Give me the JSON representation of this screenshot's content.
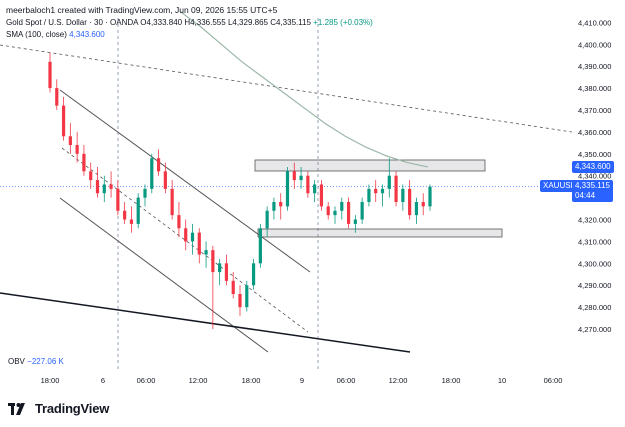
{
  "header": {
    "created_by": "meerbaloch1 created with TradingView.com, Jun 09, 2026 15:55 UTC+5"
  },
  "legend": {
    "symbol_line": "Gold Spot / U.S. Dollar · 30 · OANDA",
    "open": "O4,333.840",
    "high": "H4,336.555",
    "low": "L4,329.865",
    "close": "C4,335.115",
    "change": "+1.285 (+0.03%)",
    "sma_label": "SMA (100, close)",
    "sma_value": "4,343.600"
  },
  "obv": {
    "label": "OBV",
    "value": "−227.06 K"
  },
  "price_tags": {
    "sma": {
      "value": "4,343.600",
      "color": "#2962ff"
    },
    "symbol": {
      "label": "XAUUSD",
      "value": "4,335.115",
      "countdown": "04:44",
      "color": "#2962ff"
    }
  },
  "axis": {
    "y_ticks": [
      "4,410.000",
      "4,400.000",
      "4,390.000",
      "4,380.000",
      "4,370.000",
      "4,360.000",
      "4,350.000",
      "4,340.000",
      "4,330.000",
      "4,320.000",
      "4,310.000",
      "4,300.000",
      "4,290.000",
      "4,280.000",
      "4,270.000"
    ],
    "x_ticks": [
      "18:00",
      "6",
      "06:00",
      "12:00",
      "18:00",
      "9",
      "06:00",
      "12:00",
      "18:00",
      "10",
      "06:00"
    ]
  },
  "colors": {
    "up": "#089981",
    "down": "#f23645",
    "sma": "#9bb7a8",
    "text": "#131722"
  },
  "brand": {
    "name": "TradingView",
    "logo": "tradingview-logo-icon"
  },
  "chart_data": {
    "type": "candlestick",
    "ylim": [
      4265,
      4412
    ],
    "y_ticks": [
      4410,
      4400,
      4390,
      4380,
      4370,
      4360,
      4350,
      4340,
      4330,
      4320,
      4310,
      4300,
      4290,
      4280,
      4270
    ],
    "x_ticks": [
      "18:00",
      "6",
      "06:00",
      "12:00",
      "18:00",
      "9",
      "06:00",
      "12:00",
      "18:00",
      "10",
      "06:00"
    ],
    "candles": [
      [
        4392,
        4396,
        4378,
        4380
      ],
      [
        4380,
        4384,
        4370,
        4372
      ],
      [
        4372,
        4376,
        4356,
        4358
      ],
      [
        4358,
        4364,
        4350,
        4354
      ],
      [
        4354,
        4360,
        4346,
        4350
      ],
      [
        4350,
        4354,
        4340,
        4342
      ],
      [
        4342,
        4346,
        4334,
        4338
      ],
      [
        4338,
        4344,
        4330,
        4332
      ],
      [
        4332,
        4340,
        4328,
        4336
      ],
      [
        4336,
        4342,
        4330,
        4334
      ],
      [
        4334,
        4338,
        4322,
        4324
      ],
      [
        4324,
        4328,
        4318,
        4320
      ],
      [
        4320,
        4326,
        4314,
        4318
      ],
      [
        4318,
        4332,
        4316,
        4330
      ],
      [
        4330,
        4336,
        4326,
        4334
      ],
      [
        4334,
        4350,
        4332,
        4348
      ],
      [
        4348,
        4352,
        4340,
        4342
      ],
      [
        4342,
        4346,
        4332,
        4334
      ],
      [
        4334,
        4338,
        4320,
        4322
      ],
      [
        4322,
        4328,
        4312,
        4316
      ],
      [
        4316,
        4320,
        4306,
        4310
      ],
      [
        4310,
        4318,
        4304,
        4314
      ],
      [
        4314,
        4316,
        4300,
        4304
      ],
      [
        4304,
        4310,
        4298,
        4306
      ],
      [
        4306,
        4308,
        4270,
        4296
      ],
      [
        4296,
        4302,
        4290,
        4300
      ],
      [
        4300,
        4304,
        4290,
        4292
      ],
      [
        4292,
        4296,
        4284,
        4286
      ],
      [
        4286,
        4290,
        4276,
        4280
      ],
      [
        4280,
        4292,
        4278,
        4290
      ],
      [
        4290,
        4302,
        4288,
        4300
      ],
      [
        4300,
        4318,
        4298,
        4316
      ],
      [
        4316,
        4326,
        4312,
        4324
      ],
      [
        4324,
        4330,
        4320,
        4328
      ],
      [
        4328,
        4332,
        4320,
        4326
      ],
      [
        4326,
        4344,
        4324,
        4342
      ],
      [
        4342,
        4346,
        4334,
        4338
      ],
      [
        4338,
        4344,
        4334,
        4340
      ],
      [
        4340,
        4342,
        4330,
        4332
      ],
      [
        4332,
        4338,
        4328,
        4336
      ],
      [
        4336,
        4338,
        4324,
        4326
      ],
      [
        4326,
        4328,
        4320,
        4322
      ],
      [
        4322,
        4326,
        4318,
        4324
      ],
      [
        4324,
        4330,
        4320,
        4328
      ],
      [
        4328,
        4330,
        4316,
        4318
      ],
      [
        4318,
        4322,
        4314,
        4320
      ],
      [
        4320,
        4330,
        4318,
        4328
      ],
      [
        4328,
        4336,
        4326,
        4334
      ],
      [
        4334,
        4338,
        4328,
        4332
      ],
      [
        4332,
        4336,
        4326,
        4334
      ],
      [
        4334,
        4348,
        4330,
        4340
      ],
      [
        4340,
        4342,
        4326,
        4328
      ],
      [
        4328,
        4336,
        4324,
        4334
      ],
      [
        4334,
        4338,
        4320,
        4322
      ],
      [
        4322,
        4330,
        4318,
        4328
      ],
      [
        4328,
        4332,
        4322,
        4326
      ],
      [
        4326,
        4336,
        4324,
        4335
      ]
    ],
    "sma_series": [
      4415,
      4408,
      4400,
      4392,
      4385,
      4378,
      4371,
      4364,
      4358,
      4353,
      4349,
      4346,
      4344
    ],
    "obv_value": "−227.06 K"
  }
}
